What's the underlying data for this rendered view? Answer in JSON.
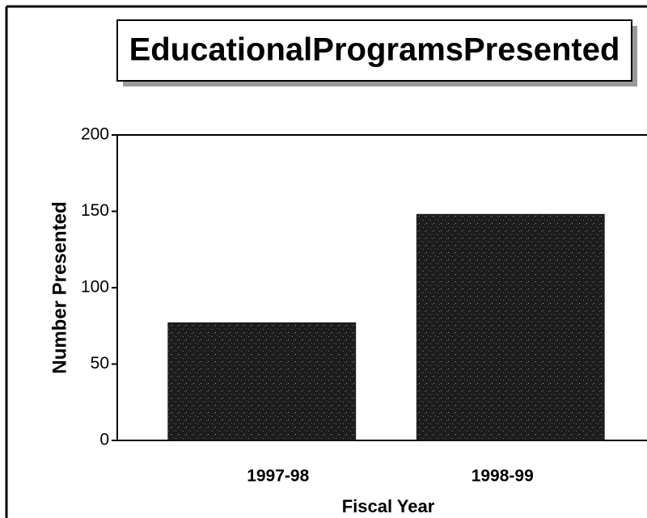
{
  "chart_data": {
    "type": "bar",
    "title": "EducationalProgramsPresented",
    "x_label": "Fiscal Year",
    "y_label": "Number Presented",
    "categories": [
      "1997-98",
      "1998-99"
    ],
    "values": [
      77,
      148
    ],
    "color": "#1c1c1c",
    "ylim": [
      0,
      200
    ],
    "yticks": [
      0,
      50,
      100,
      150,
      200
    ],
    "grid": false
  }
}
